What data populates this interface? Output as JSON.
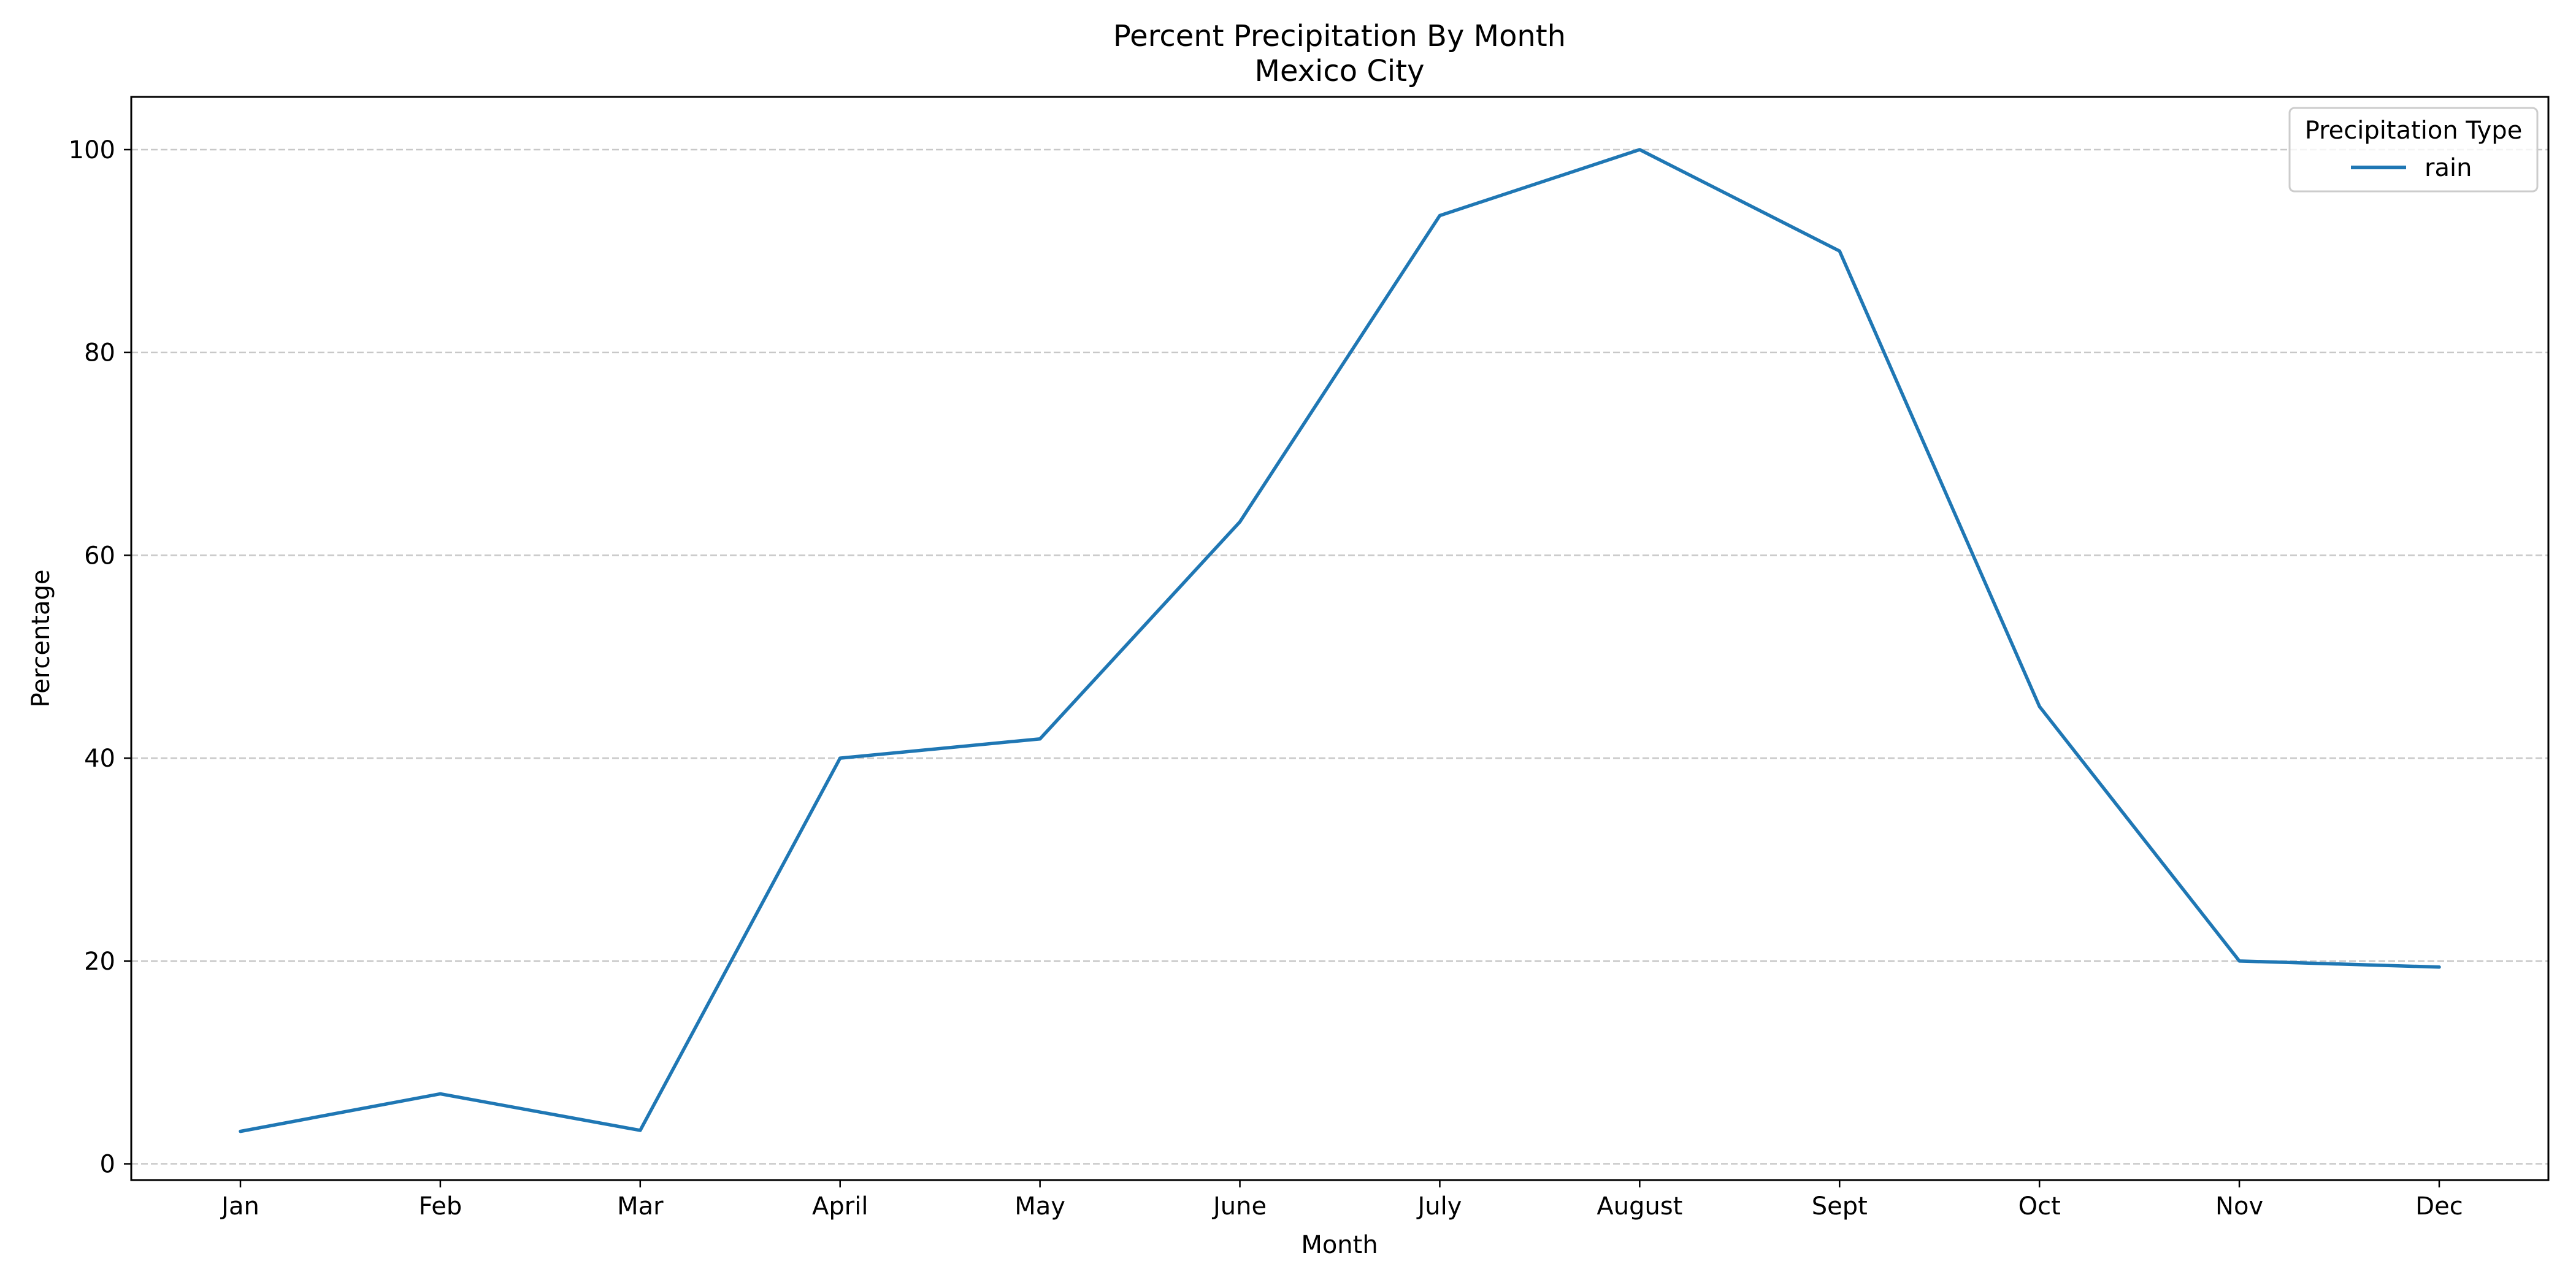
{
  "chart_data": {
    "type": "line",
    "title": "Percent Precipitation By Month",
    "subtitle": "Mexico City",
    "xlabel": "Month",
    "ylabel": "Percentage",
    "categories": [
      "Jan",
      "Feb",
      "Mar",
      "April",
      "May",
      "June",
      "July",
      "August",
      "Sept",
      "Oct",
      "Nov",
      "Dec"
    ],
    "series": [
      {
        "name": "rain",
        "values": [
          3.2,
          6.9,
          3.3,
          40.0,
          41.9,
          63.3,
          93.5,
          100.0,
          90.0,
          45.1,
          20.0,
          19.4
        ],
        "color": "#1f77b4"
      }
    ],
    "yticks": [
      0,
      20,
      40,
      60,
      80,
      100
    ],
    "ylim": [
      -1.6,
      105.2
    ],
    "grid": true,
    "grid_axis": "y",
    "legend": {
      "title": "Precipitation Type",
      "placement": "top-right"
    }
  }
}
